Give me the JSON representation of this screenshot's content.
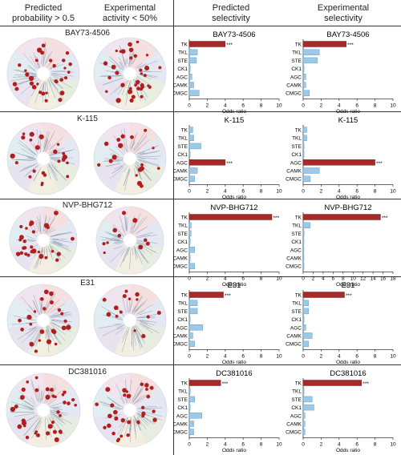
{
  "header": {
    "col1": [
      "Predicted",
      "probability > 0.5"
    ],
    "col2": [
      "Experimental",
      "activity < 50%"
    ],
    "col3": [
      "Predicted",
      "selectivity"
    ],
    "col4": [
      "Experimental",
      "selectivity"
    ]
  },
  "colors": {
    "bar_highlight": "#a52a2a",
    "bar_normal": "#9cc9e8",
    "dot": "#b21e1e"
  },
  "chart_data": [
    {
      "compound": "BAY73-4506",
      "panel": "predicted",
      "type": "bar",
      "orientation": "horizontal",
      "categories": [
        "TK",
        "TKL",
        "STE",
        "CK1",
        "AGC",
        "CAMK",
        "CMGC"
      ],
      "values": [
        4.0,
        0.9,
        0.8,
        0.1,
        0.3,
        0.5,
        1.1
      ],
      "highlight": [
        0
      ],
      "annotation": "***",
      "xlabel": "Odds ratio",
      "xlim": [
        0,
        10
      ],
      "xticks": [
        0,
        2,
        4,
        6,
        8,
        10
      ]
    },
    {
      "compound": "BAY73-4506",
      "panel": "experimental",
      "type": "bar",
      "orientation": "horizontal",
      "categories": [
        "TK",
        "TKL",
        "STE",
        "CK1",
        "AGC",
        "CAMK",
        "CMGC"
      ],
      "values": [
        4.8,
        1.8,
        1.6,
        0.1,
        0.3,
        0.3,
        0.7
      ],
      "highlight": [
        0
      ],
      "annotation": "***",
      "xlabel": "Odds ratio",
      "xlim": [
        0,
        10
      ],
      "xticks": [
        0,
        2,
        4,
        6,
        8,
        10
      ]
    },
    {
      "compound": "K-115",
      "panel": "predicted",
      "type": "bar",
      "orientation": "horizontal",
      "categories": [
        "TK",
        "TKL",
        "STE",
        "CK1",
        "AGC",
        "CAMK",
        "CMGC"
      ],
      "values": [
        0.4,
        0.5,
        1.3,
        0.1,
        4.0,
        0.9,
        0.6
      ],
      "highlight": [
        4
      ],
      "annotation": "***",
      "xlabel": "Odds ratio",
      "xlim": [
        0,
        10
      ],
      "xticks": [
        0,
        2,
        4,
        6,
        8,
        10
      ]
    },
    {
      "compound": "K-115",
      "panel": "experimental",
      "type": "bar",
      "orientation": "horizontal",
      "categories": [
        "TK",
        "TKL",
        "STE",
        "CK1",
        "AGC",
        "CAMK",
        "CMGC"
      ],
      "values": [
        0.4,
        0.4,
        0.1,
        0.1,
        8.0,
        1.8,
        0.8
      ],
      "highlight": [
        4
      ],
      "annotation": "***",
      "xlabel": "Odds ratio",
      "xlim": [
        0,
        10
      ],
      "xticks": [
        0,
        2,
        4,
        6,
        8,
        10
      ]
    },
    {
      "compound": "NVP-BHG712",
      "panel": "predicted",
      "type": "bar",
      "orientation": "horizontal",
      "categories": [
        "TK",
        "TKL",
        "STE",
        "CK1",
        "AGC",
        "CAMK",
        "CMGC"
      ],
      "values": [
        9.2,
        0.2,
        0.2,
        0.1,
        0.6,
        0.1,
        0.6
      ],
      "highlight": [
        0
      ],
      "annotation": "***",
      "xlabel": "Odds ratio",
      "xlim": [
        0,
        10
      ],
      "xticks": [
        0,
        2,
        4,
        6,
        8,
        10
      ]
    },
    {
      "compound": "NVP-BHG712",
      "panel": "experimental",
      "type": "bar",
      "orientation": "horizontal",
      "categories": [
        "TK",
        "TKL",
        "STE",
        "CK1",
        "AGC",
        "CAMK",
        "CMGC"
      ],
      "values": [
        15.5,
        1.4,
        0.2,
        0.1,
        0.1,
        0.1,
        0.1
      ],
      "highlight": [
        0
      ],
      "annotation": "***",
      "xlabel": "Odds ratio",
      "xlim": [
        0,
        18
      ],
      "xticks": [
        0,
        2,
        4,
        6,
        8,
        10,
        12,
        14,
        16,
        18
      ]
    },
    {
      "compound": "E31",
      "panel": "predicted",
      "type": "bar",
      "orientation": "horizontal",
      "categories": [
        "TK",
        "TKL",
        "STE",
        "CK1",
        "AGC",
        "CAMK",
        "CMGC"
      ],
      "values": [
        3.8,
        0.9,
        0.9,
        0.1,
        1.5,
        0.4,
        0.6
      ],
      "highlight": [
        0
      ],
      "annotation": "***",
      "xlabel": "Odds ratio",
      "xlim": [
        0,
        10
      ],
      "xticks": [
        0,
        2,
        4,
        6,
        8,
        10
      ]
    },
    {
      "compound": "E31",
      "panel": "experimental",
      "type": "bar",
      "orientation": "horizontal",
      "categories": [
        "TK",
        "TKL",
        "STE",
        "CK1",
        "AGC",
        "CAMK",
        "CMGC"
      ],
      "values": [
        4.6,
        0.6,
        0.6,
        0.1,
        0.3,
        1.0,
        0.6
      ],
      "highlight": [
        0
      ],
      "annotation": "***",
      "xlabel": "Odds ratio",
      "xlim": [
        0,
        10
      ],
      "xticks": [
        0,
        2,
        4,
        6,
        8,
        10
      ]
    },
    {
      "compound": "DC381016",
      "panel": "predicted",
      "type": "bar",
      "orientation": "horizontal",
      "categories": [
        "TK",
        "TKL",
        "STE",
        "CK1",
        "AGC",
        "CAMK",
        "CMGC"
      ],
      "values": [
        3.5,
        0.1,
        0.6,
        0.1,
        1.4,
        0.5,
        0.5
      ],
      "highlight": [
        0
      ],
      "annotation": "***",
      "xlabel": "Odds ratio",
      "xlim": [
        0,
        10
      ],
      "xticks": [
        0,
        2,
        4,
        6,
        8,
        10
      ]
    },
    {
      "compound": "DC381016",
      "panel": "experimental",
      "type": "bar",
      "orientation": "horizontal",
      "categories": [
        "TK",
        "TKL",
        "STE",
        "CK1",
        "AGC",
        "CAMK",
        "CMGC"
      ],
      "values": [
        6.5,
        0.1,
        1.0,
        1.2,
        0.2,
        0.2,
        0.2
      ],
      "highlight": [
        0
      ],
      "annotation": "***",
      "xlabel": "Odds ratio",
      "xlim": [
        0,
        10
      ],
      "xticks": [
        0,
        2,
        4,
        6,
        8,
        10
      ]
    }
  ],
  "kinome_trees": [
    {
      "compound": "BAY73-4506",
      "predicted_dots": 30,
      "experimental_dots": 34
    },
    {
      "compound": "K-115",
      "predicted_dots": 22,
      "experimental_dots": 18
    },
    {
      "compound": "NVP-BHG712",
      "predicted_dots": 28,
      "experimental_dots": 10
    },
    {
      "compound": "E31",
      "predicted_dots": 24,
      "experimental_dots": 14
    },
    {
      "compound": "DC381016",
      "predicted_dots": 36,
      "experimental_dots": 32
    }
  ]
}
